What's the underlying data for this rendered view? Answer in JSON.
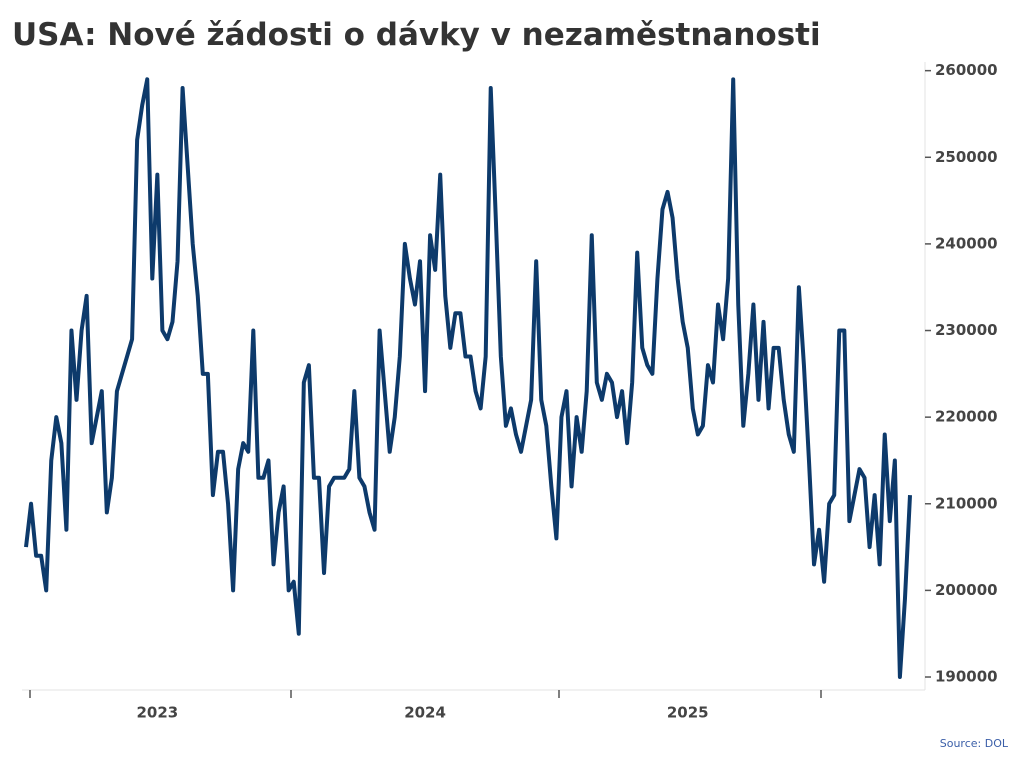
{
  "chart_data": {
    "type": "line",
    "title": "USA: Nové žádosti o dávky v nezaměstnanosti",
    "source": "Source: DOL",
    "categories": [
      null,
      null,
      null,
      null,
      null,
      null,
      null,
      null,
      null,
      null,
      null,
      null,
      null,
      null,
      null,
      null,
      null,
      null,
      null,
      null,
      null,
      null,
      null,
      null,
      null,
      null,
      "2023",
      null,
      null,
      null,
      null,
      null,
      null,
      null,
      null,
      null,
      null,
      null,
      null,
      null,
      null,
      null,
      null,
      null,
      null,
      null,
      null,
      null,
      null,
      null,
      null,
      null,
      null,
      null,
      null,
      null,
      null,
      null,
      null,
      null,
      null,
      null,
      null,
      null,
      null,
      null,
      null,
      null,
      null,
      null,
      null,
      null,
      null,
      null,
      null,
      null,
      null,
      null,
      null,
      "2024",
      null,
      null,
      null,
      null,
      null,
      null,
      null,
      null,
      null,
      null,
      null,
      null,
      null,
      null,
      null,
      null,
      null,
      null,
      null,
      null,
      null,
      null,
      null,
      null,
      null,
      null,
      null,
      null,
      null,
      null,
      null,
      null,
      null,
      null,
      null,
      null,
      null,
      null,
      null,
      null,
      null,
      null,
      null,
      null,
      null,
      null,
      null,
      null,
      null,
      null,
      null,
      "2025",
      null,
      null,
      null,
      null,
      null,
      null,
      null,
      null,
      null,
      null,
      null,
      null,
      null,
      null,
      null,
      null,
      null,
      null,
      null,
      null,
      null,
      null,
      null,
      null,
      null,
      null,
      null,
      null,
      null,
      null,
      null,
      null,
      null,
      null,
      null,
      null,
      null,
      null,
      null,
      null,
      null,
      null,
      null,
      null
    ],
    "series": [
      {
        "name": "Nové žádosti",
        "color": "#0d3a6b",
        "values": [
          205000,
          210000,
          204000,
          204000,
          200000,
          215000,
          220000,
          217000,
          207000,
          230000,
          222000,
          230000,
          234000,
          217000,
          220000,
          223000,
          209000,
          213000,
          223000,
          225000,
          227000,
          229000,
          252000,
          256000,
          259000,
          236000,
          248000,
          230000,
          229000,
          231000,
          238000,
          258000,
          249000,
          240000,
          234000,
          225000,
          225000,
          211000,
          216000,
          216000,
          210000,
          200000,
          214000,
          217000,
          216000,
          230000,
          213000,
          213000,
          215000,
          203000,
          209000,
          212000,
          200000,
          201000,
          195000,
          224000,
          226000,
          213000,
          213000,
          202000,
          212000,
          213000,
          213000,
          213000,
          214000,
          223000,
          213000,
          212000,
          209000,
          207000,
          230000,
          223000,
          216000,
          220000,
          227000,
          240000,
          236000,
          233000,
          238000,
          223000,
          241000,
          237000,
          248000,
          234000,
          228000,
          232000,
          232000,
          227000,
          227000,
          223000,
          221000,
          227000,
          258000,
          243000,
          227000,
          219000,
          221000,
          218000,
          216000,
          219000,
          222000,
          238000,
          222000,
          219000,
          212000,
          206000,
          220000,
          223000,
          212000,
          220000,
          216000,
          223000,
          241000,
          224000,
          222000,
          225000,
          224000,
          220000,
          223000,
          217000,
          224000,
          239000,
          228000,
          226000,
          225000,
          236000,
          244000,
          246000,
          243000,
          236000,
          231000,
          228000,
          221000,
          218000,
          219000,
          226000,
          224000,
          233000,
          229000,
          236000,
          259000,
          233000,
          219000,
          225000,
          233000,
          222000,
          231000,
          221000,
          228000,
          228000,
          222000,
          218000,
          216000,
          235000,
          226000,
          215000,
          203000,
          207000,
          201000,
          210000,
          211000,
          230000,
          230000,
          208000,
          211000,
          214000,
          213000,
          205000,
          211000,
          203000,
          218000,
          208000,
          215000,
          190000,
          199000,
          211000
        ]
      }
    ],
    "ylim": [
      188500,
      261000
    ],
    "yticks": [
      190000,
      200000,
      210000,
      220000,
      230000,
      240000,
      250000,
      260000
    ],
    "y_axis_side": "right"
  }
}
